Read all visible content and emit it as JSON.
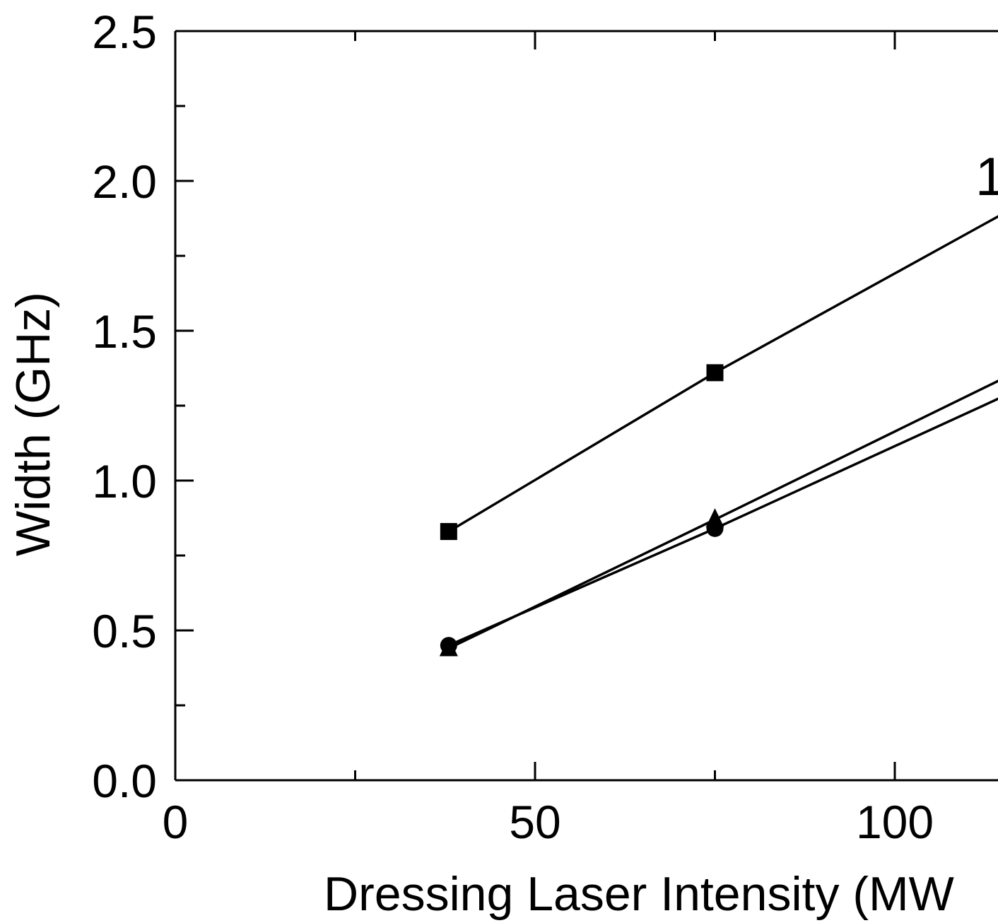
{
  "chart_data": {
    "type": "line",
    "title": "",
    "xlabel": "Dressing Laser Intensity (MW",
    "ylabel": "Width (GHz)",
    "xlim": [
      0,
      115
    ],
    "ylim": [
      0.0,
      2.5
    ],
    "x_ticks": [
      "0",
      "50",
      "100"
    ],
    "y_ticks": [
      "0.0",
      "0.5",
      "1.0",
      "1.5",
      "2.0",
      "2.5"
    ],
    "grid": false,
    "annotations": [
      {
        "text": "1",
        "x": 112.5,
        "y": 2.0
      }
    ],
    "series": [
      {
        "marker": "square",
        "x": [
          38,
          75,
          115
        ],
        "y": [
          0.83,
          1.36,
          1.89
        ]
      },
      {
        "marker": "triangle",
        "x": [
          38,
          75,
          115
        ],
        "y": [
          0.44,
          0.87,
          1.34
        ]
      },
      {
        "marker": "circle",
        "x": [
          38,
          75,
          115
        ],
        "y": [
          0.45,
          0.84,
          1.28
        ]
      }
    ],
    "colors": {
      "line": "#000000",
      "marker": "#000000",
      "background": "#ffffff"
    }
  }
}
